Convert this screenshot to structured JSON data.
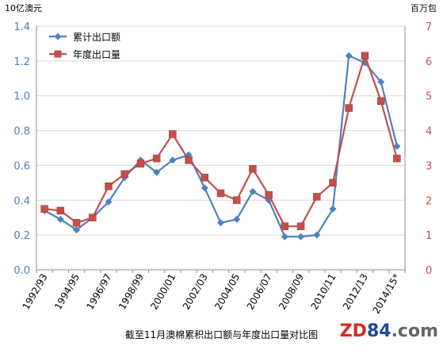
{
  "chart_data": {
    "type": "line",
    "caption": "截至11月澳棉累积出口额与年度出口量对比图",
    "left_unit": "10亿澳元",
    "right_unit": "百万包",
    "categories": [
      "1992/93",
      "1993/94",
      "1994/95",
      "1995/96",
      "1996/97",
      "1997/98",
      "1998/99",
      "1999/00",
      "2000/01",
      "2001/02",
      "2002/03",
      "2003/04",
      "2004/05",
      "2005/06",
      "2006/07",
      "2007/08",
      "2008/09",
      "2009/10",
      "2010/11",
      "2011/12",
      "2012/13",
      "2013/14",
      "2014/15*"
    ],
    "x_tick_labels": [
      "1992/93",
      "1994/95",
      "1996/97",
      "1998/99",
      "2000/01",
      "2002/03",
      "2004/05",
      "2006/07",
      "2008/09",
      "2010/11",
      "2012/13",
      "2014/15*"
    ],
    "y_left": {
      "min": 0,
      "max": 1.4,
      "step": 0.2,
      "ticks": [
        "0.0",
        "0.2",
        "0.4",
        "0.6",
        "0.8",
        "1.0",
        "1.2",
        "1.4"
      ],
      "color": "#4f7db8"
    },
    "y_right": {
      "min": 0,
      "max": 7,
      "step": 1,
      "ticks": [
        "0",
        "1",
        "2",
        "3",
        "4",
        "5",
        "6",
        "7"
      ],
      "color": "#c0504d"
    },
    "series": [
      {
        "name": "累计出口额",
        "axis": "left",
        "color": "#4f81bd",
        "marker": "diamond",
        "values": [
          0.34,
          0.29,
          0.23,
          0.3,
          0.39,
          0.53,
          0.63,
          0.56,
          0.63,
          0.66,
          0.47,
          0.27,
          0.29,
          0.45,
          0.4,
          0.19,
          0.19,
          0.2,
          0.35,
          1.23,
          1.19,
          1.08,
          0.71
        ]
      },
      {
        "name": "年度出口量",
        "axis": "right",
        "color": "#c0504d",
        "marker": "square",
        "values": [
          1.75,
          1.7,
          1.35,
          1.5,
          2.4,
          2.75,
          3.05,
          3.2,
          3.9,
          3.15,
          2.65,
          2.2,
          2.0,
          2.9,
          2.15,
          1.25,
          1.25,
          2.1,
          2.5,
          4.65,
          6.15,
          4.85,
          3.2
        ]
      }
    ],
    "legend_position": "top-left",
    "grid": true
  },
  "watermark": {
    "part1": "ZD",
    "part2": "84",
    "part3": ".com"
  }
}
